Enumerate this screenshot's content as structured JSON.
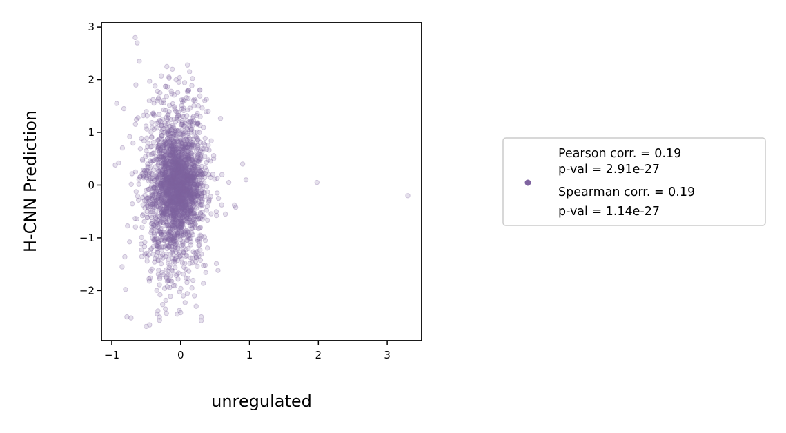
{
  "chart_data": {
    "type": "scatter",
    "title": "",
    "xlabel": "unregulated",
    "ylabel": "H-CNN Prediction",
    "xlim": [
      -1.15,
      3.5
    ],
    "ylim": [
      -2.95,
      3.08
    ],
    "xticks": [
      -1,
      0,
      1,
      2,
      3
    ],
    "yticks": [
      -2,
      -1,
      0,
      1,
      2,
      3
    ],
    "grid": false,
    "legend_position": "right",
    "point_color": "#7f63a0",
    "point_alpha": 0.2,
    "series": [
      {
        "legend_lines": [
          "Pearson corr. = 0.19",
          "p-val = 2.91e-27",
          "Spearman corr. = 0.19",
          "p-val = 1.14e-27"
        ],
        "points": [
          [
            -0.66,
            2.8
          ],
          [
            -0.63,
            2.7
          ],
          [
            -0.6,
            2.35
          ],
          [
            -0.45,
            1.97
          ],
          [
            -0.2,
            2.25
          ],
          [
            0.1,
            2.28
          ],
          [
            -0.12,
            2.2
          ],
          [
            0.13,
            2.15
          ],
          [
            -0.93,
            1.55
          ],
          [
            -0.9,
            0.42
          ],
          [
            -0.95,
            0.38
          ],
          [
            -0.85,
            -1.55
          ],
          [
            -0.8,
            -1.98
          ],
          [
            -0.78,
            -2.5
          ],
          [
            -0.72,
            -2.52
          ],
          [
            -0.5,
            -2.68
          ],
          [
            -0.45,
            -2.65
          ],
          [
            -0.22,
            -2.35
          ],
          [
            -0.05,
            -2.45
          ],
          [
            0.0,
            -2.42
          ],
          [
            0.3,
            -2.5
          ],
          [
            0.2,
            -2.1
          ],
          [
            0.4,
            1.4
          ],
          [
            0.6,
            0.2
          ],
          [
            0.7,
            0.05
          ],
          [
            0.78,
            -0.38
          ],
          [
            0.8,
            -0.42
          ],
          [
            0.9,
            0.4
          ],
          [
            0.95,
            0.1
          ],
          [
            0.65,
            -0.55
          ],
          [
            1.98,
            0.05
          ],
          [
            3.3,
            -0.2
          ],
          [
            0.55,
            -0.25
          ],
          [
            0.48,
            0.5
          ],
          [
            0.35,
            1.6
          ],
          [
            0.28,
            1.8
          ],
          [
            -0.3,
            1.75
          ],
          [
            -0.65,
            1.9
          ]
        ]
      }
    ]
  }
}
